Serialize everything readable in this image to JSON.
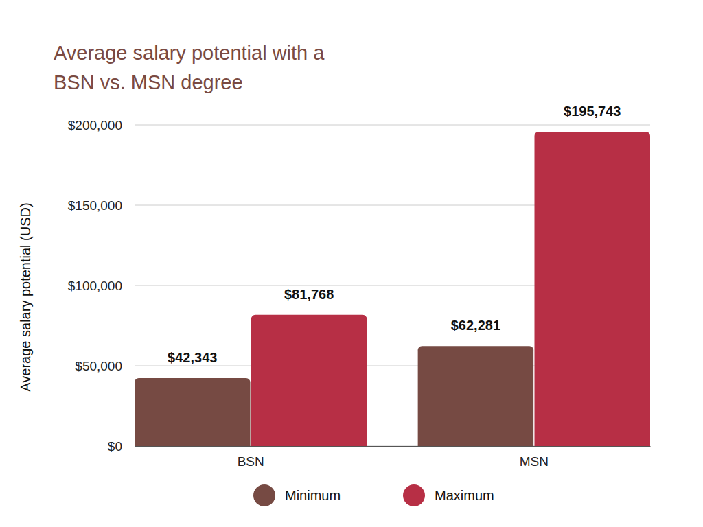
{
  "chart_data": {
    "type": "bar",
    "title": "Average salary potential with a\nBSN vs. MSN degree",
    "y_label": "Average salary potential (USD)",
    "categories": [
      "BSN",
      "MSN"
    ],
    "series": [
      {
        "name": "Minimum",
        "color": "#764a43",
        "values": [
          42343,
          62281
        ],
        "value_labels": [
          "$42,343",
          "$62,281"
        ]
      },
      {
        "name": "Maximum",
        "color": "#b72f45",
        "values": [
          81768,
          195743
        ],
        "value_labels": [
          "$81,768",
          "$195,743"
        ]
      }
    ],
    "ylim": [
      0,
      200000
    ],
    "yticks": [
      {
        "value": 0,
        "label": "$0"
      },
      {
        "value": 50000,
        "label": "$50,000"
      },
      {
        "value": 100000,
        "label": "$100,000"
      },
      {
        "value": 150000,
        "label": "$150,000"
      },
      {
        "value": 200000,
        "label": "$200,000"
      }
    ],
    "grid": true,
    "legend": "bottom",
    "data_labels": true
  }
}
